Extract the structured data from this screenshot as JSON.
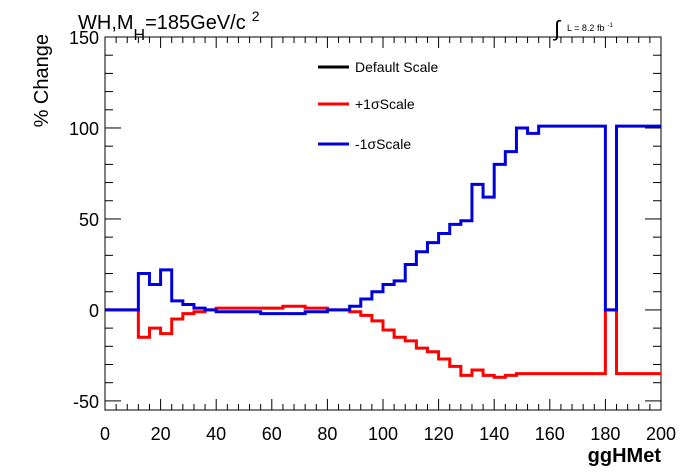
{
  "chart_data": {
    "type": "line",
    "title": {
      "main": "WH,M",
      "subscript": "H",
      "rest": "=185GeV/c",
      "superscript": "2"
    },
    "lumi": {
      "integral_sign": "∫",
      "text": "L = 8.2 fb",
      "superscript": "-1"
    },
    "xlabel": "ggHMet",
    "ylabel": "% Change",
    "xlim": [
      0,
      200
    ],
    "ylim": [
      -55,
      150
    ],
    "x_ticks": [
      0,
      20,
      40,
      60,
      80,
      100,
      120,
      140,
      160,
      180,
      200
    ],
    "y_ticks": [
      -50,
      0,
      50,
      100,
      150
    ],
    "grid": false,
    "legend_position": "top-center",
    "series": [
      {
        "name": "Default Scale",
        "color": "#000000",
        "steps": []
      },
      {
        "name": "+1σScale",
        "color": "#ff0000",
        "steps": [
          [
            0,
            0
          ],
          [
            12,
            -15
          ],
          [
            16,
            -10
          ],
          [
            20,
            -13
          ],
          [
            24,
            -5
          ],
          [
            28,
            -2
          ],
          [
            32,
            -1
          ],
          [
            36,
            0
          ],
          [
            40,
            1
          ],
          [
            48,
            1
          ],
          [
            56,
            1
          ],
          [
            64,
            2
          ],
          [
            72,
            1
          ],
          [
            80,
            0
          ],
          [
            88,
            -1
          ],
          [
            92,
            -3
          ],
          [
            96,
            -6
          ],
          [
            100,
            -11
          ],
          [
            104,
            -15
          ],
          [
            108,
            -17
          ],
          [
            112,
            -21
          ],
          [
            116,
            -23
          ],
          [
            120,
            -27
          ],
          [
            124,
            -31
          ],
          [
            128,
            -36
          ],
          [
            132,
            -33
          ],
          [
            136,
            -36
          ],
          [
            140,
            -37
          ],
          [
            144,
            -36
          ],
          [
            148,
            -35
          ],
          [
            152,
            -35
          ],
          [
            180,
            0
          ],
          [
            184,
            -35
          ],
          [
            188,
            -35
          ],
          [
            200,
            -35
          ]
        ]
      },
      {
        "name": "-1σScale",
        "color": "#0000dd",
        "steps": [
          [
            0,
            0
          ],
          [
            12,
            20
          ],
          [
            16,
            14
          ],
          [
            20,
            22
          ],
          [
            24,
            5
          ],
          [
            28,
            3
          ],
          [
            32,
            1
          ],
          [
            36,
            0
          ],
          [
            40,
            -1
          ],
          [
            48,
            -1
          ],
          [
            56,
            -2
          ],
          [
            64,
            -2
          ],
          [
            72,
            -1
          ],
          [
            80,
            0
          ],
          [
            84,
            0
          ],
          [
            88,
            2
          ],
          [
            92,
            6
          ],
          [
            96,
            10
          ],
          [
            100,
            14
          ],
          [
            104,
            16
          ],
          [
            108,
            25
          ],
          [
            112,
            32
          ],
          [
            116,
            37
          ],
          [
            120,
            42
          ],
          [
            124,
            47
          ],
          [
            128,
            49
          ],
          [
            132,
            69
          ],
          [
            136,
            62
          ],
          [
            140,
            80
          ],
          [
            144,
            87
          ],
          [
            148,
            100
          ],
          [
            152,
            97
          ],
          [
            156,
            101
          ],
          [
            180,
            0
          ],
          [
            184,
            101
          ],
          [
            188,
            101
          ],
          [
            200,
            101
          ]
        ]
      }
    ]
  }
}
